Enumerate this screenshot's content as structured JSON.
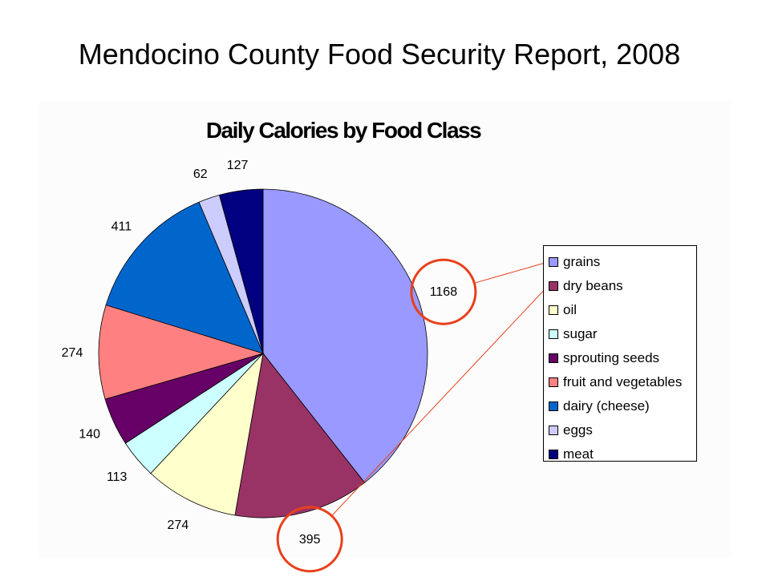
{
  "page": {
    "title": "Mendocino County Food Security Report, 2008"
  },
  "chart_data": {
    "type": "pie",
    "title": "Daily Calories by Food Class",
    "categories": [
      "grains",
      "dry beans",
      "oil",
      "sugar",
      "sprouting seeds",
      "fruit and vegetables",
      "dairy (cheese)",
      "eggs",
      "meat"
    ],
    "values": [
      1168,
      395,
      274,
      113,
      140,
      274,
      411,
      62,
      127
    ],
    "colors": [
      "#9999ff",
      "#993366",
      "#ffffcc",
      "#ccffff",
      "#660066",
      "#ff8080",
      "#0066cc",
      "#ccccff",
      "#000080"
    ],
    "start_angle_deg": 0,
    "direction": "clockwise",
    "legend_position": "right",
    "annotations": [
      {
        "type": "circle",
        "target_label": "1168",
        "color": "#e8401c",
        "connects_to_legend": "grains"
      },
      {
        "type": "circle",
        "target_label": "395",
        "color": "#e8401c",
        "connects_to_legend": "dry beans"
      }
    ]
  }
}
